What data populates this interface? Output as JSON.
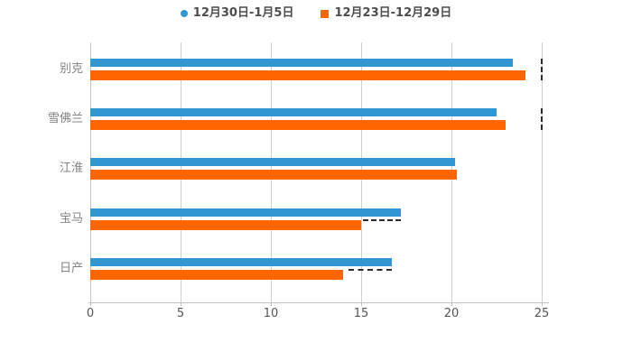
{
  "chart_data": {
    "type": "bar",
    "orientation": "horizontal",
    "title": "",
    "categories": [
      "别克",
      "雪佛兰",
      "江淮",
      "宝马",
      "日产"
    ],
    "series": [
      {
        "name": "12月30日-1月5日",
        "marker": "circle",
        "color": "#3296D1",
        "values": [
          23.4,
          22.5,
          20.2,
          17.2,
          16.7
        ]
      },
      {
        "name": "12月23日-12月29日",
        "marker": "square",
        "color": "#FF6600",
        "values": [
          24.1,
          23.0,
          20.3,
          15.0,
          14.0
        ]
      }
    ],
    "xlabel": "",
    "ylabel": "",
    "xlim": [
      0,
      25
    ],
    "x_ticks": [
      0,
      5,
      10,
      15,
      20,
      25
    ],
    "grid": true,
    "legend_position": "top",
    "colors": {
      "gridline": "#CFCFCF",
      "axis": "#C2C2C2",
      "tick_label": "#555555",
      "category_label": "#828282",
      "legend_text": "#4D4D4D",
      "artifact_dash": "#2B2B2B",
      "background": "#FFFFFF"
    },
    "artifact_dashes": [
      {
        "type": "vertical",
        "row": 0,
        "at_value": 25
      },
      {
        "type": "vertical",
        "row": 1,
        "at_value": 25
      },
      {
        "type": "horizontal",
        "row": 3,
        "from_value": 15.1,
        "to_value": 17.2
      },
      {
        "type": "horizontal",
        "row": 4,
        "from_value": 14.3,
        "to_value": 16.7
      }
    ]
  }
}
